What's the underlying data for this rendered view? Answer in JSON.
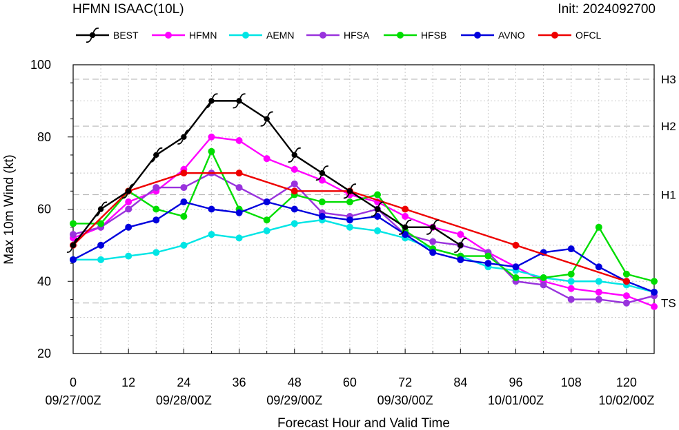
{
  "chart_data": {
    "type": "line",
    "title": "HFMN ISAAC(10L)",
    "init_label": "Init: 2024092700",
    "xlabel": "Forecast Hour and Valid Time",
    "ylabel": "Max 10m Wind (kt)",
    "xlim": [
      0,
      126
    ],
    "ylim": [
      20,
      100
    ],
    "x_ticks": [
      0,
      12,
      24,
      36,
      48,
      60,
      72,
      84,
      96,
      108,
      120
    ],
    "x_tick_labels": [
      "0",
      "12",
      "24",
      "36",
      "48",
      "60",
      "72",
      "84",
      "96",
      "108",
      "120"
    ],
    "date_labels": [
      {
        "x": 0,
        "label": "09/27/00Z"
      },
      {
        "x": 24,
        "label": "09/28/00Z"
      },
      {
        "x": 48,
        "label": "09/29/00Z"
      },
      {
        "x": 72,
        "label": "09/30/00Z"
      },
      {
        "x": 96,
        "label": "10/01/00Z"
      },
      {
        "x": 120,
        "label": "10/02/00Z"
      }
    ],
    "y_ticks": [
      20,
      40,
      60,
      80,
      100
    ],
    "y_tick_labels": [
      "20",
      "40",
      "60",
      "80",
      "100"
    ],
    "thresholds": [
      {
        "label": "TS",
        "value": 34
      },
      {
        "label": "H1",
        "value": 64
      },
      {
        "label": "H2",
        "value": 83
      },
      {
        "label": "H3",
        "value": 96
      }
    ],
    "grid": true,
    "legend_position": "top",
    "series": [
      {
        "name": "BEST",
        "color": "#000000",
        "marker": "hurricane",
        "x": [
          0,
          6,
          12,
          18,
          24,
          30,
          36,
          42,
          48,
          54,
          60,
          66,
          72,
          78,
          84
        ],
        "y": [
          50,
          60,
          65,
          75,
          80,
          90,
          90,
          85,
          75,
          70,
          65,
          60,
          55,
          55,
          50
        ]
      },
      {
        "name": "HFMN",
        "color": "#ff00ff",
        "marker": "dot",
        "x": [
          0,
          6,
          12,
          18,
          24,
          30,
          36,
          42,
          48,
          54,
          60,
          66,
          72,
          78,
          84,
          90,
          96,
          102,
          108,
          114,
          120,
          126
        ],
        "y": [
          52,
          55,
          62,
          65,
          71,
          80,
          79,
          74,
          71,
          68,
          64,
          62,
          58,
          55,
          53,
          48,
          44,
          40,
          38,
          37,
          36,
          33
        ]
      },
      {
        "name": "AEMN",
        "color": "#00e5e5",
        "marker": "dot",
        "x": [
          0,
          6,
          12,
          18,
          24,
          30,
          36,
          42,
          48,
          54,
          60,
          66,
          72,
          78,
          84,
          90,
          96,
          102,
          108,
          114,
          120,
          126
        ],
        "y": [
          46,
          46,
          47,
          48,
          50,
          53,
          52,
          54,
          56,
          57,
          55,
          54,
          52,
          49,
          47,
          44,
          43,
          41,
          40,
          40,
          39,
          37
        ]
      },
      {
        "name": "HFSA",
        "color": "#9933dd",
        "marker": "dot",
        "x": [
          0,
          6,
          12,
          18,
          24,
          30,
          36,
          42,
          48,
          54,
          60,
          66,
          72,
          78,
          84,
          90,
          96,
          102,
          108,
          114,
          120,
          126
        ],
        "y": [
          53,
          55,
          60,
          66,
          66,
          70,
          66,
          62,
          67,
          59,
          58,
          60,
          53,
          51,
          50,
          48,
          40,
          39,
          35,
          35,
          34,
          36
        ]
      },
      {
        "name": "HFSB",
        "color": "#00dd00",
        "marker": "dot",
        "x": [
          0,
          6,
          12,
          18,
          24,
          30,
          36,
          42,
          48,
          54,
          60,
          66,
          72,
          78,
          84,
          90,
          96,
          102,
          108,
          114,
          120,
          126
        ],
        "y": [
          56,
          56,
          65,
          60,
          58,
          76,
          60,
          57,
          64,
          62,
          62,
          64,
          54,
          49,
          47,
          47,
          41,
          41,
          42,
          55,
          42,
          40
        ]
      },
      {
        "name": "AVNO",
        "color": "#0000dd",
        "marker": "dot",
        "x": [
          0,
          6,
          12,
          18,
          24,
          30,
          36,
          42,
          48,
          54,
          60,
          66,
          72,
          78,
          84,
          90,
          96,
          102,
          108,
          114,
          120,
          126
        ],
        "y": [
          46,
          50,
          55,
          57,
          62,
          60,
          59,
          62,
          60,
          58,
          57,
          58,
          53,
          48,
          46,
          45,
          44,
          48,
          49,
          44,
          40,
          37
        ]
      },
      {
        "name": "OFCL",
        "color": "#ee0000",
        "marker": "dot",
        "x": [
          0,
          12,
          24,
          36,
          48,
          60,
          72,
          96,
          120
        ],
        "y": [
          50,
          65,
          70,
          70,
          65,
          65,
          60,
          50,
          40
        ]
      }
    ]
  }
}
